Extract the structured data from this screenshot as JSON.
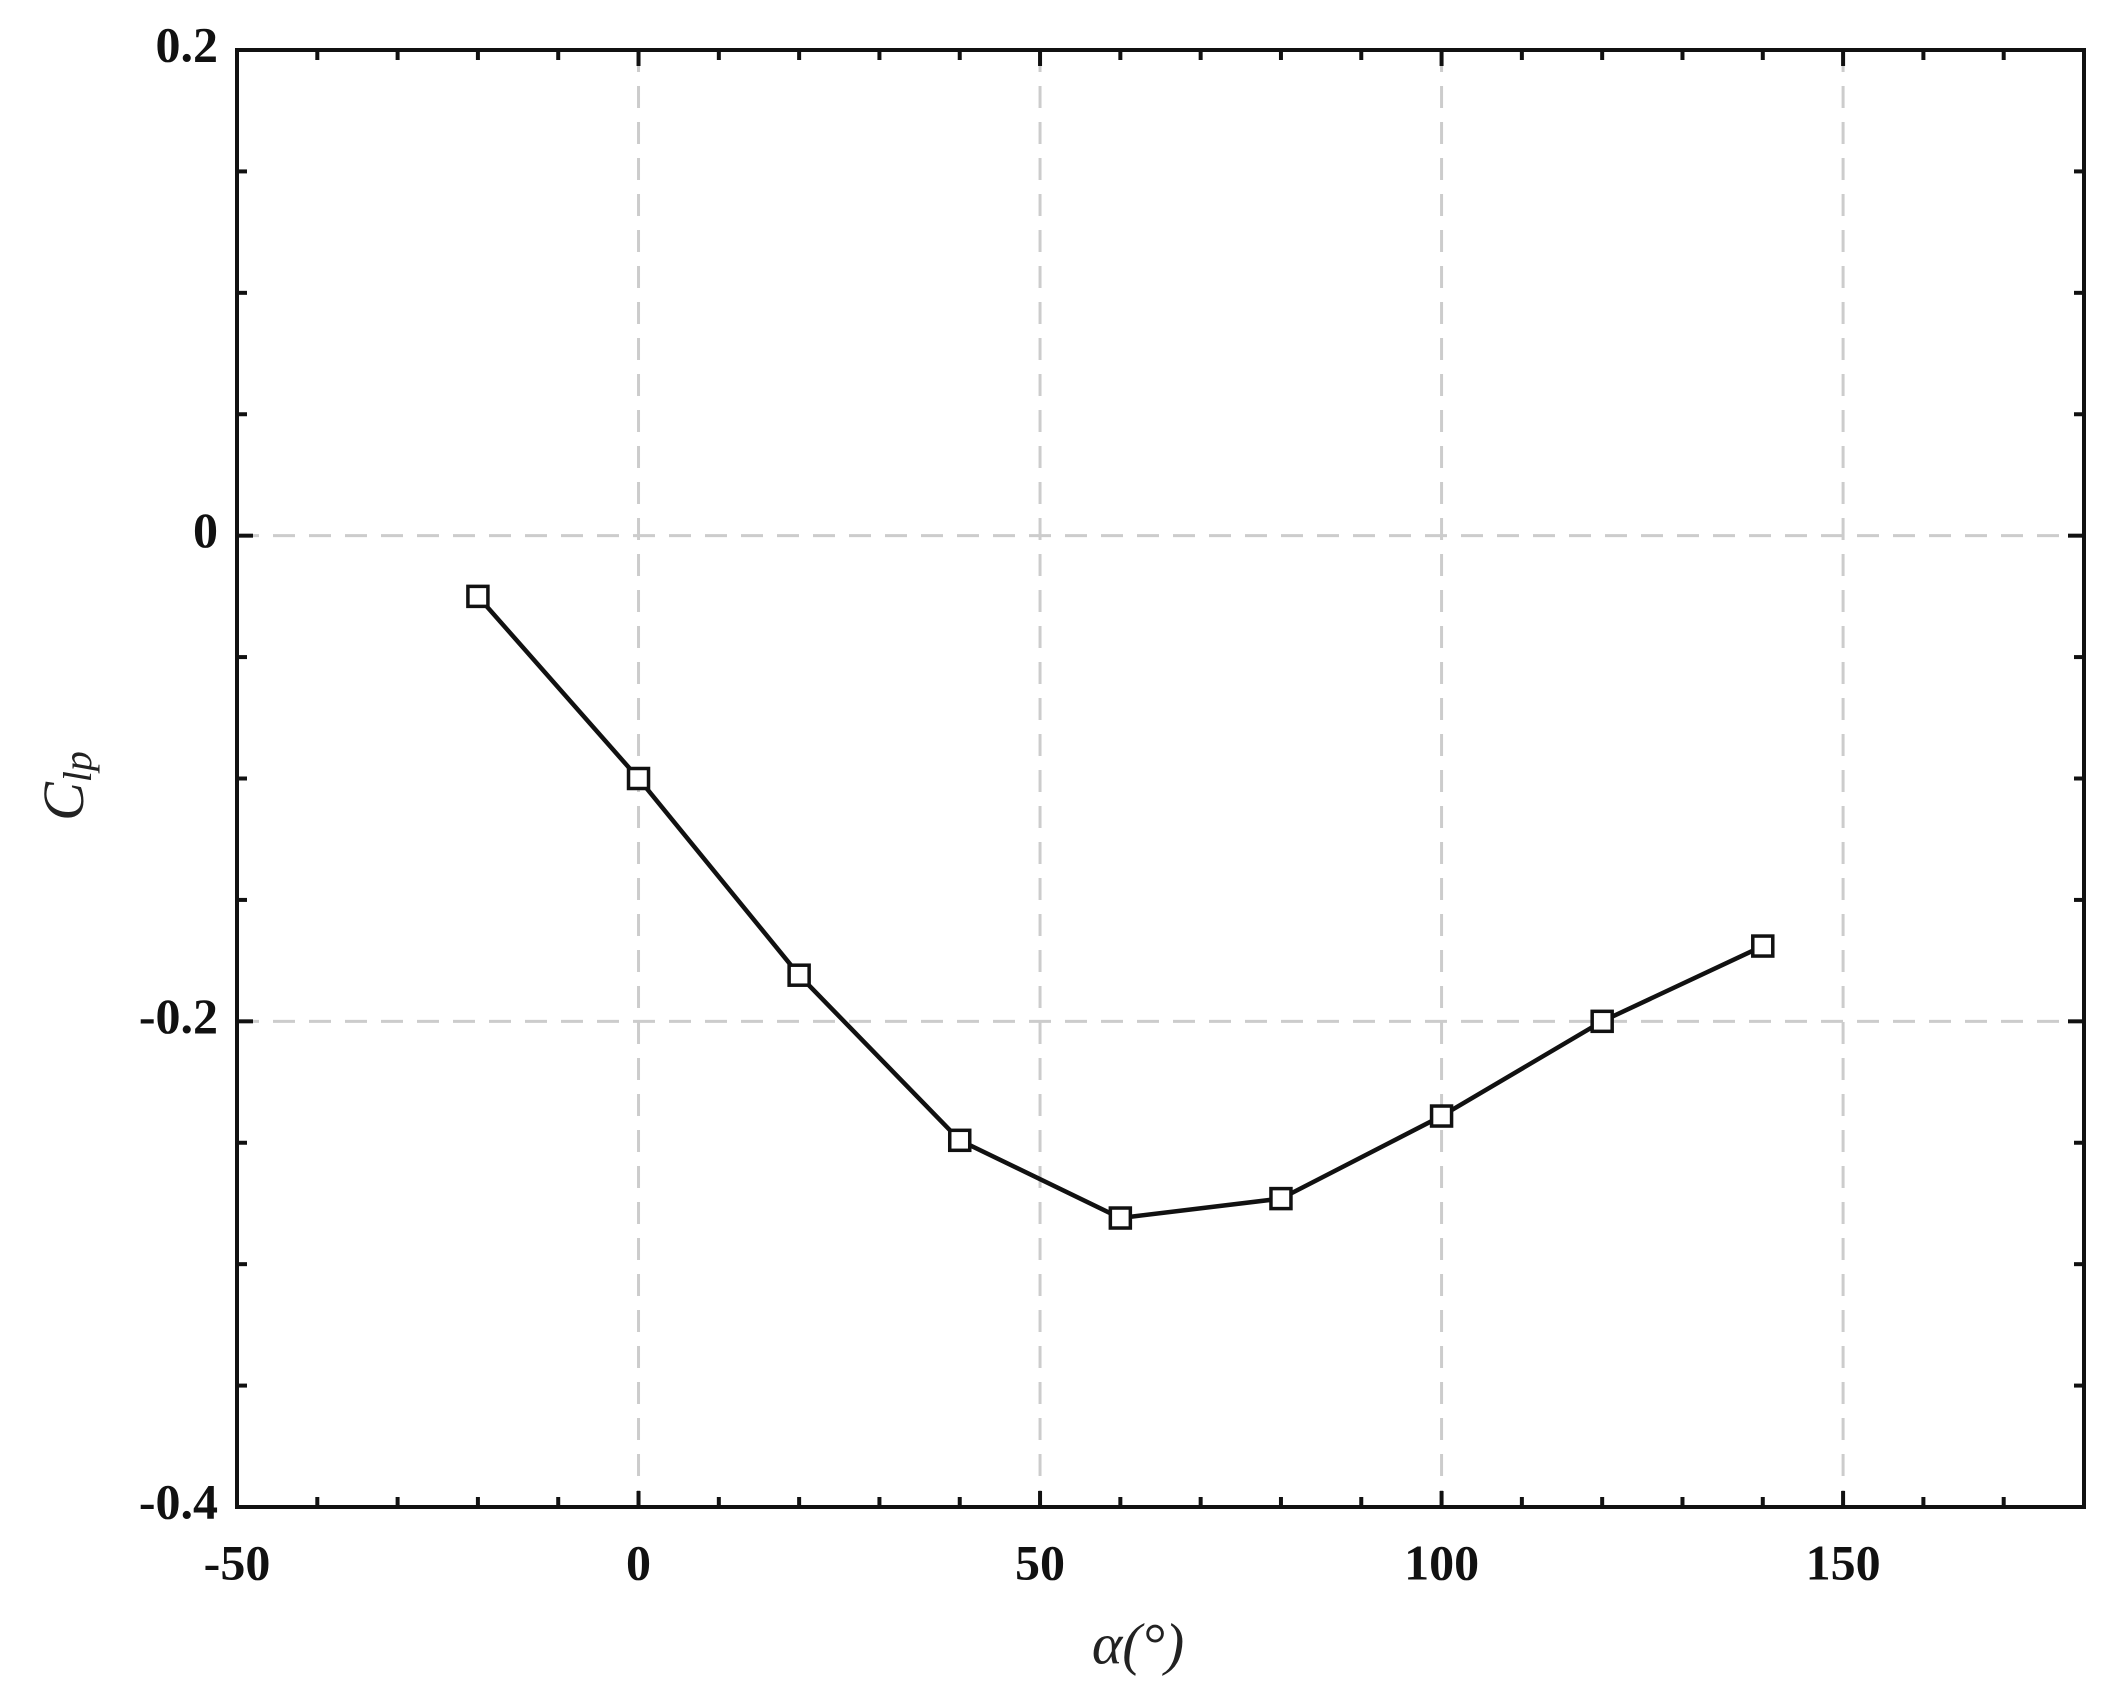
{
  "chart_data": {
    "type": "line",
    "xlabel": "α(°)",
    "ylabel": {
      "base": "C",
      "sub": "lp"
    },
    "x": [
      -20,
      0,
      20,
      40,
      60,
      80,
      100,
      120,
      140
    ],
    "series": [
      {
        "color": "#111111",
        "marker": "square",
        "values": [
          -0.025,
          -0.1,
          -0.181,
          -0.249,
          -0.281,
          -0.273,
          -0.239,
          -0.2,
          -0.169
        ]
      }
    ],
    "xlim": [
      -50,
      180
    ],
    "ylim": [
      -0.4,
      0.2
    ],
    "xticks": [
      -50,
      0,
      50,
      100,
      150
    ],
    "yticks": [
      -0.4,
      -0.2,
      0,
      0.2
    ],
    "xminorticks": [
      -40,
      -30,
      -20,
      -10,
      10,
      20,
      30,
      40,
      60,
      70,
      80,
      90,
      110,
      120,
      130,
      140,
      160,
      170
    ],
    "yminorticks": [
      -0.35,
      -0.3,
      -0.25,
      -0.15,
      -0.1,
      -0.05,
      0.05,
      0.1,
      0.15
    ],
    "grid": true
  }
}
